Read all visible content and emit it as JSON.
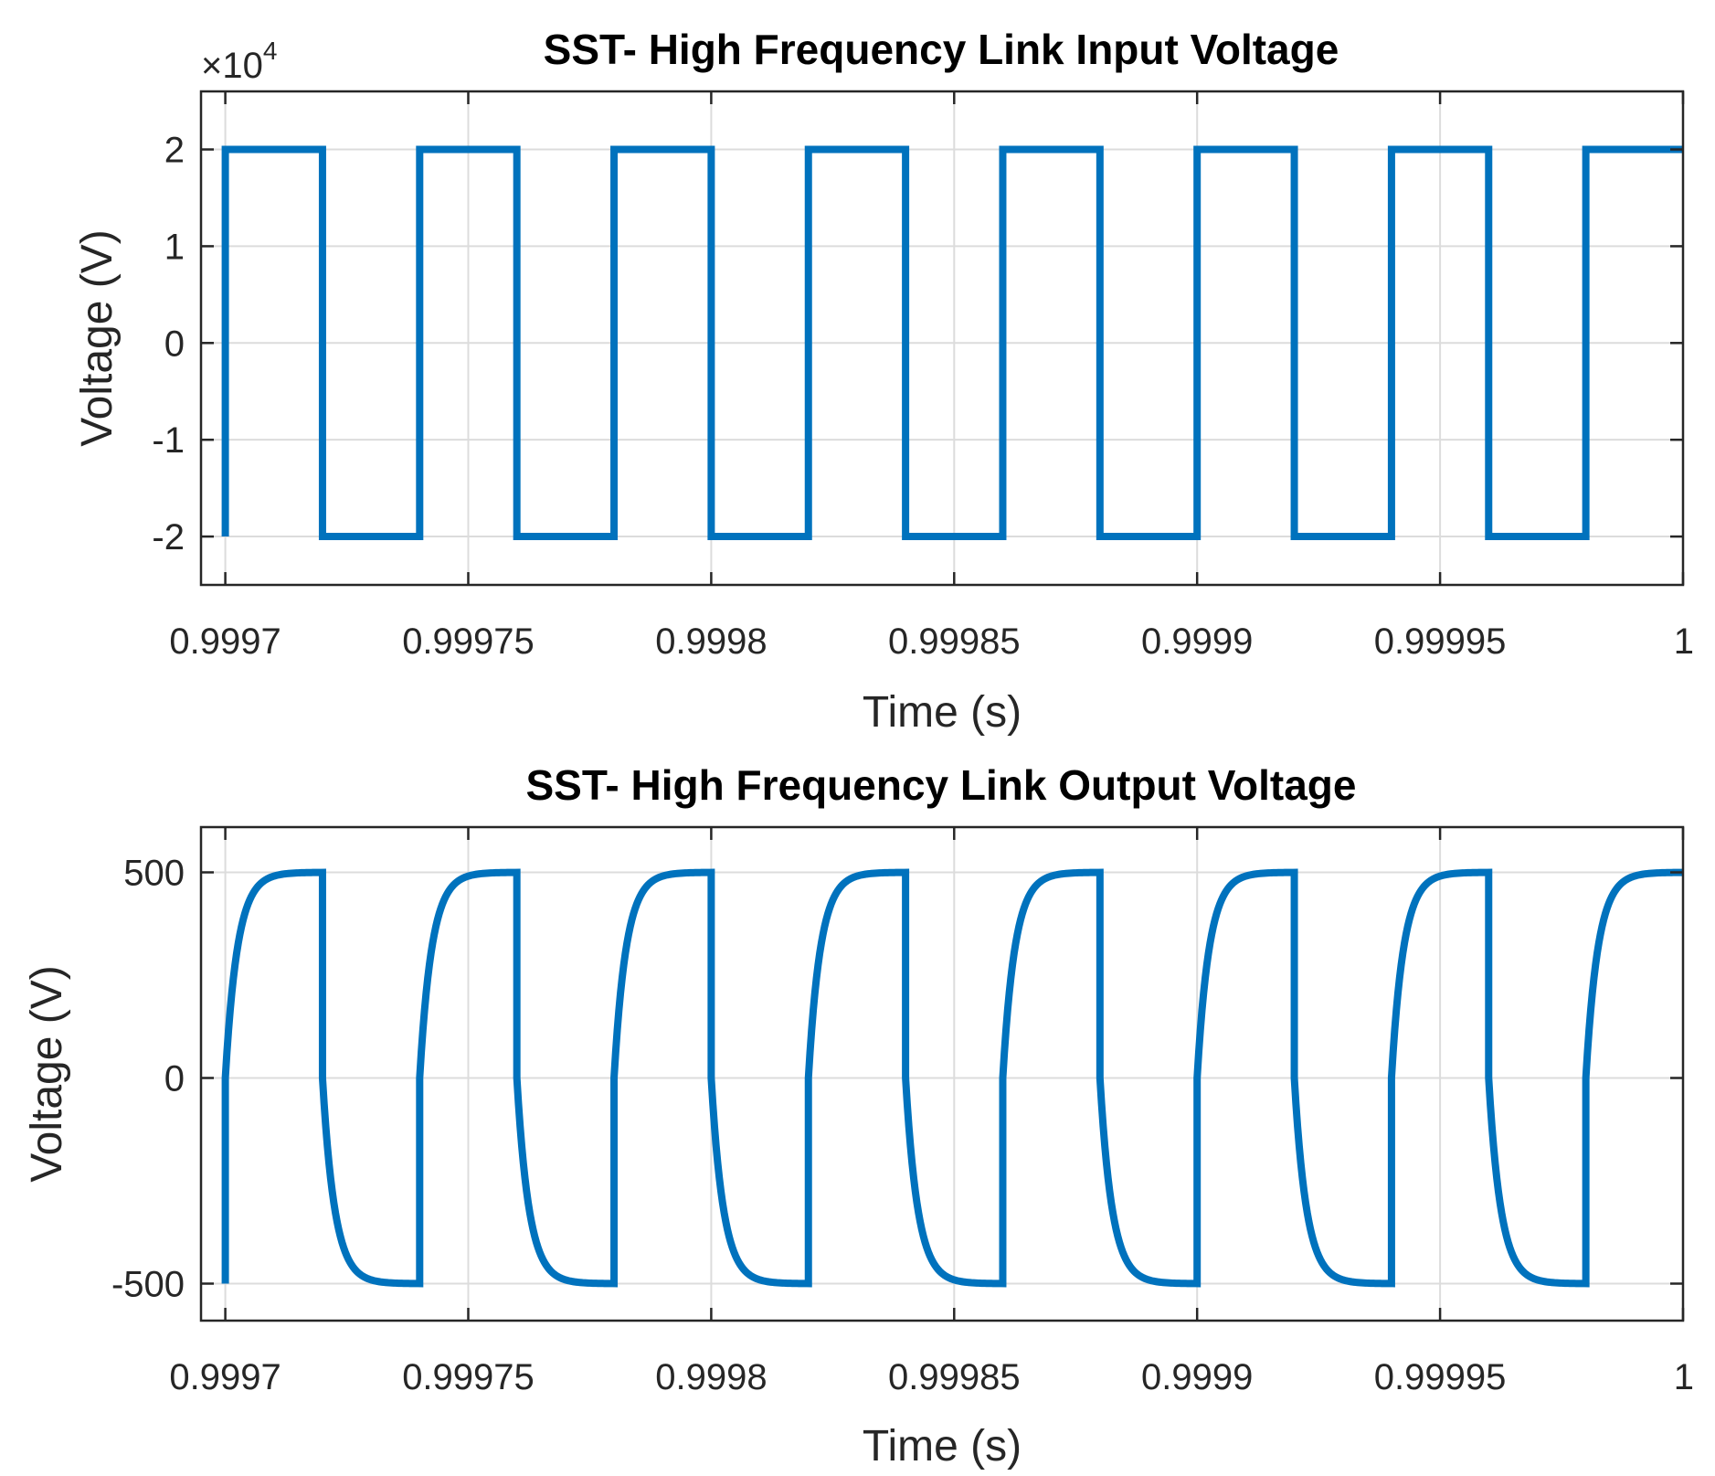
{
  "colors": {
    "series": "#0072BD"
  },
  "chart_data": [
    {
      "type": "line",
      "title": "SST- High Frequency Link Input Voltage",
      "xlabel": "Time (s)",
      "ylabel": "Voltage (V)",
      "xlim": [
        0.999695,
        1.0
      ],
      "ylim": [
        -25000,
        26000
      ],
      "y_exponent_label": {
        "base": "×10",
        "power": "4"
      },
      "grid": true,
      "x_ticks": [
        {
          "value": 0.9997,
          "label": "0.9997"
        },
        {
          "value": 0.99975,
          "label": "0.99975"
        },
        {
          "value": 0.9998,
          "label": "0.9998"
        },
        {
          "value": 0.99985,
          "label": "0.99985"
        },
        {
          "value": 0.9999,
          "label": "0.9999"
        },
        {
          "value": 0.99995,
          "label": "0.99995"
        },
        {
          "value": 1.0,
          "label": "1"
        }
      ],
      "y_ticks": [
        {
          "value": 20000,
          "label": "2"
        },
        {
          "value": 10000,
          "label": "1"
        },
        {
          "value": 0,
          "label": "0"
        },
        {
          "value": -10000,
          "label": "-1"
        },
        {
          "value": -20000,
          "label": "-2"
        }
      ],
      "waveform": "square",
      "amplitude": 20000,
      "transitions": [
        0.99972,
        0.99974,
        0.99976,
        0.99978,
        0.9998,
        0.99982,
        0.99984,
        0.99986,
        0.99988,
        0.9999,
        0.99992,
        0.99994,
        0.99996,
        0.99998
      ],
      "initial_level": 20000,
      "series": [
        {
          "values_description_free": true
        }
      ]
    },
    {
      "type": "line",
      "title": "SST- High Frequency Link Output Voltage",
      "xlabel": "Time (s)",
      "ylabel": "Voltage (V)",
      "xlim": [
        0.999695,
        1.0
      ],
      "ylim": [
        -590,
        610
      ],
      "grid": true,
      "x_ticks": [
        {
          "value": 0.9997,
          "label": "0.9997"
        },
        {
          "value": 0.99975,
          "label": "0.99975"
        },
        {
          "value": 0.9998,
          "label": "0.9998"
        },
        {
          "value": 0.99985,
          "label": "0.99985"
        },
        {
          "value": 0.9999,
          "label": "0.9999"
        },
        {
          "value": 0.99995,
          "label": "0.99995"
        },
        {
          "value": 1.0,
          "label": "1"
        }
      ],
      "y_ticks": [
        {
          "value": 500,
          "label": "500"
        },
        {
          "value": 0,
          "label": "0"
        },
        {
          "value": -500,
          "label": "-500"
        }
      ],
      "waveform": "rounded-square",
      "amplitude": 500,
      "transitions": [
        0.99972,
        0.99974,
        0.99976,
        0.99978,
        0.9998,
        0.99982,
        0.99984,
        0.99986,
        0.99988,
        0.9999,
        0.99992,
        0.99994,
        0.99996,
        0.99998
      ],
      "initial_level": -500,
      "rise_time_constant": 2.5e-06
    }
  ]
}
